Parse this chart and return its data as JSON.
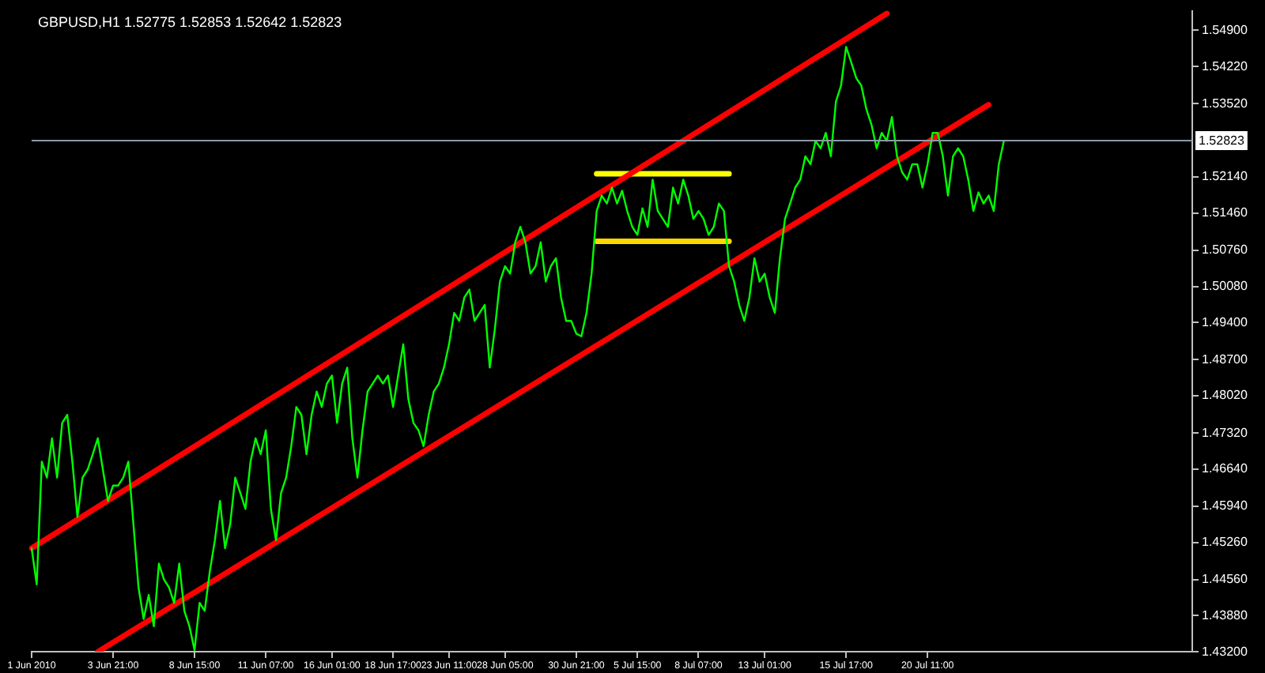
{
  "chart_data": {
    "type": "line",
    "title": "GBPUSD,H1 1.52775 1.52853 1.52642 1.52823",
    "categories": [
      "1 Jun 2010",
      null,
      null,
      null,
      null,
      null,
      null,
      null,
      null,
      null,
      null,
      null,
      null,
      null,
      null,
      null,
      "3 Jun 21:00",
      null,
      null,
      null,
      null,
      null,
      null,
      null,
      null,
      null,
      null,
      null,
      null,
      null,
      null,
      null,
      "8 Jun 15:00",
      null,
      null,
      null,
      null,
      null,
      null,
      null,
      null,
      null,
      null,
      null,
      null,
      null,
      "11 Jun 07:00",
      null,
      null,
      null,
      null,
      null,
      null,
      null,
      null,
      null,
      null,
      null,
      null,
      "16 Jun 01:00",
      null,
      null,
      null,
      null,
      null,
      null,
      null,
      null,
      null,
      null,
      null,
      "18 Jun 17:00",
      null,
      null,
      null,
      null,
      null,
      null,
      null,
      null,
      null,
      null,
      "23 Jun 11:00",
      null,
      null,
      null,
      null,
      null,
      null,
      null,
      null,
      null,
      null,
      "28 Jun 05:00",
      null,
      null,
      null,
      null,
      null,
      null,
      null,
      null,
      null,
      null,
      null,
      null,
      null,
      "30 Jun 21:00",
      null,
      null,
      null,
      null,
      null,
      null,
      null,
      null,
      null,
      null,
      null,
      "5 Jul 15:00",
      null,
      null,
      null,
      null,
      null,
      null,
      null,
      null,
      null,
      null,
      null,
      "8 Jul 07:00",
      null,
      null,
      null,
      null,
      null,
      null,
      null,
      null,
      null,
      null,
      null,
      null,
      "13 Jul 01:00",
      null,
      null,
      null,
      null,
      null,
      null,
      null,
      null,
      null,
      null,
      null,
      null,
      null,
      null,
      null,
      "15 Jul 17:00",
      null,
      null,
      null,
      null,
      null,
      null,
      null,
      null,
      null,
      null,
      null,
      null,
      null,
      null,
      null,
      "20 Jul 11:00",
      null,
      null,
      null,
      null,
      null,
      null,
      null,
      null,
      null,
      null,
      null,
      null,
      null,
      null,
      null,
      null,
      null,
      null,
      null,
      null,
      null,
      null,
      null,
      null,
      null,
      null,
      null,
      null,
      null,
      null,
      null,
      null,
      null,
      null,
      null,
      null,
      null,
      null,
      null,
      null,
      null,
      null,
      null,
      null,
      null,
      null,
      null,
      null,
      null,
      null,
      null,
      null
    ],
    "ylim": [
      1.432,
      1.5527
    ],
    "yticks": [
      {
        "value": 1.549,
        "label": "1.54900"
      },
      {
        "value": 1.5422,
        "label": "1.54220"
      },
      {
        "value": 1.5352,
        "label": "1.53520"
      },
      {
        "value": 1.5214,
        "label": "1.52140"
      },
      {
        "value": 1.5146,
        "label": "1.51460"
      },
      {
        "value": 1.5076,
        "label": "1.50760"
      },
      {
        "value": 1.5008,
        "label": "1.50080"
      },
      {
        "value": 1.494,
        "label": "1.49400"
      },
      {
        "value": 1.487,
        "label": "1.48700"
      },
      {
        "value": 1.4802,
        "label": "1.48020"
      },
      {
        "value": 1.4732,
        "label": "1.47320"
      },
      {
        "value": 1.4664,
        "label": "1.46640"
      },
      {
        "value": 1.4594,
        "label": "1.45940"
      },
      {
        "value": 1.4526,
        "label": "1.45260"
      },
      {
        "value": 1.4456,
        "label": "1.44560"
      },
      {
        "value": 1.4388,
        "label": "1.43880"
      },
      {
        "value": 1.432,
        "label": "1.43200"
      }
    ],
    "grid": false,
    "legend": false,
    "marker": "none",
    "line_style": "solid",
    "ref_lines": [
      {
        "axis": "y",
        "value": 1.52823,
        "label": "1.52823",
        "color": "#8c9aa8"
      }
    ],
    "series": [
      {
        "color": "#00ff00",
        "values": [
          1.4515,
          1.4447,
          1.4678,
          1.4648,
          1.4722,
          1.4648,
          1.4751,
          1.4766,
          1.4678,
          1.4574,
          1.4648,
          1.4663,
          1.4692,
          1.4722,
          1.4663,
          1.4604,
          1.4633,
          1.4633,
          1.4648,
          1.4678,
          1.456,
          1.4441,
          1.4382,
          1.4427,
          1.4368,
          1.4486,
          1.4456,
          1.4441,
          1.4412,
          1.4486,
          1.4397,
          1.4368,
          1.4323,
          1.4412,
          1.4397,
          1.4471,
          1.453,
          1.4604,
          1.4515,
          1.456,
          1.4648,
          1.4619,
          1.4589,
          1.4678,
          1.4722,
          1.4692,
          1.4737,
          1.4589,
          1.453,
          1.4619,
          1.4648,
          1.4707,
          1.4781,
          1.4766,
          1.4692,
          1.4766,
          1.481,
          1.4781,
          1.4825,
          1.484,
          1.4751,
          1.4825,
          1.4855,
          1.4722,
          1.4648,
          1.4737,
          1.481,
          1.4825,
          1.484,
          1.4825,
          1.484,
          1.4781,
          1.484,
          1.4899,
          1.4796,
          1.4751,
          1.4737,
          1.4707,
          1.4766,
          1.481,
          1.4825,
          1.4855,
          1.4899,
          1.4958,
          1.4943,
          1.4987,
          1.5002,
          1.4943,
          1.4958,
          1.4973,
          1.4855,
          1.4928,
          1.5017,
          1.5046,
          1.5032,
          1.5091,
          1.512,
          1.5091,
          1.5032,
          1.5046,
          1.5091,
          1.5017,
          1.5046,
          1.5061,
          1.4987,
          1.4943,
          1.4943,
          1.4919,
          1.4914,
          1.4958,
          1.5032,
          1.515,
          1.5179,
          1.5164,
          1.5194,
          1.5164,
          1.5188,
          1.515,
          1.512,
          1.5105,
          1.5155,
          1.512,
          1.5209,
          1.515,
          1.5135,
          1.512,
          1.5194,
          1.5164,
          1.5209,
          1.5179,
          1.5135,
          1.515,
          1.5135,
          1.5105,
          1.512,
          1.5164,
          1.515,
          1.5046,
          1.5017,
          1.4973,
          1.4943,
          1.4987,
          1.5061,
          1.5017,
          1.5032,
          1.4987,
          1.4958,
          1.5061,
          1.5135,
          1.5164,
          1.5194,
          1.5209,
          1.5253,
          1.5238,
          1.5282,
          1.5268,
          1.5297,
          1.5253,
          1.5356,
          1.5386,
          1.5459,
          1.543,
          1.54,
          1.5386,
          1.5341,
          1.5312,
          1.5268,
          1.5297,
          1.5282,
          1.5327,
          1.5253,
          1.5223,
          1.5209,
          1.5238,
          1.5238,
          1.5194,
          1.5238,
          1.5297,
          1.5297,
          1.5253,
          1.5179,
          1.5253,
          1.5268,
          1.5253,
          1.5209,
          1.515,
          1.5185,
          1.5164,
          1.5179,
          1.515,
          1.5238,
          1.5282,
          null,
          null,
          null,
          null,
          null,
          null,
          null,
          null,
          null,
          null,
          null,
          null,
          null,
          null,
          null,
          null,
          null,
          null,
          null,
          null,
          null,
          null,
          null,
          null,
          null,
          null,
          null,
          null,
          null,
          null,
          null,
          null,
          null,
          null,
          null,
          null,
          null
        ]
      },
      {
        "type": "line",
        "color": "#ff0000",
        "values": [
          1.4515,
          null,
          null,
          null,
          null,
          null,
          null,
          null,
          null,
          null,
          null,
          null,
          null,
          null,
          null,
          null,
          null,
          null,
          null,
          null,
          null,
          null,
          null,
          null,
          null,
          null,
          null,
          null,
          null,
          null,
          null,
          null,
          null,
          null,
          null,
          null,
          null,
          null,
          null,
          null,
          null,
          null,
          null,
          null,
          null,
          null,
          null,
          null,
          null,
          null,
          null,
          null,
          null,
          null,
          null,
          null,
          null,
          null,
          null,
          null,
          null,
          null,
          null,
          null,
          null,
          null,
          null,
          null,
          null,
          null,
          null,
          null,
          null,
          null,
          null,
          null,
          null,
          null,
          null,
          null,
          null,
          null,
          null,
          null,
          null,
          null,
          null,
          null,
          null,
          null,
          null,
          null,
          null,
          null,
          null,
          null,
          null,
          null,
          null,
          null,
          null,
          null,
          null,
          null,
          null,
          null,
          null,
          null,
          null,
          null,
          null,
          null,
          null,
          null,
          null,
          null,
          null,
          null,
          null,
          null,
          null,
          null,
          null,
          null,
          null,
          null,
          null,
          null,
          null,
          null,
          null,
          null,
          null,
          null,
          null,
          null,
          null,
          null,
          null,
          null,
          null,
          null,
          null,
          null,
          null,
          null,
          null,
          null,
          null,
          null,
          null,
          null,
          null,
          null,
          null,
          null,
          null,
          null,
          null,
          null,
          null,
          null,
          null,
          null,
          null,
          null,
          null,
          null,
          1.5522,
          null,
          null,
          null,
          null,
          null,
          null,
          null,
          null,
          null,
          null,
          null,
          null,
          null,
          null,
          null,
          null,
          null,
          null,
          null,
          null,
          null,
          null,
          null,
          null,
          null,
          null,
          null,
          null,
          null,
          null,
          null,
          null,
          null,
          null,
          null,
          null,
          null,
          null,
          null,
          null,
          null,
          null,
          null,
          null,
          null,
          null,
          null,
          null,
          null,
          null,
          null,
          null,
          null,
          null,
          null,
          null,
          null,
          null,
          null,
          null
        ]
      },
      {
        "type": "line",
        "color": "#ff0000",
        "values": [
          null,
          null,
          null,
          null,
          null,
          null,
          null,
          null,
          null,
          null,
          null,
          null,
          null,
          1.432,
          null,
          null,
          null,
          null,
          null,
          null,
          null,
          null,
          null,
          null,
          null,
          null,
          null,
          null,
          null,
          null,
          null,
          null,
          null,
          null,
          null,
          null,
          null,
          null,
          null,
          null,
          null,
          null,
          null,
          null,
          null,
          null,
          null,
          null,
          null,
          null,
          null,
          null,
          null,
          null,
          null,
          null,
          null,
          null,
          null,
          null,
          null,
          null,
          null,
          null,
          null,
          null,
          null,
          null,
          null,
          null,
          null,
          null,
          null,
          null,
          null,
          null,
          null,
          null,
          null,
          null,
          null,
          null,
          null,
          null,
          null,
          null,
          null,
          null,
          null,
          null,
          null,
          null,
          null,
          null,
          null,
          null,
          null,
          null,
          null,
          null,
          null,
          null,
          null,
          null,
          null,
          null,
          null,
          null,
          null,
          null,
          null,
          null,
          null,
          null,
          null,
          null,
          null,
          null,
          null,
          null,
          null,
          null,
          null,
          null,
          null,
          null,
          null,
          null,
          null,
          null,
          null,
          null,
          null,
          null,
          null,
          null,
          null,
          null,
          null,
          null,
          null,
          null,
          null,
          null,
          null,
          null,
          null,
          null,
          null,
          null,
          null,
          null,
          null,
          null,
          null,
          null,
          null,
          null,
          null,
          null,
          null,
          null,
          null,
          null,
          null,
          null,
          null,
          null,
          null,
          null,
          null,
          null,
          null,
          null,
          null,
          null,
          null,
          null,
          null,
          null,
          null,
          null,
          null,
          null,
          null,
          null,
          null,
          null,
          1.535,
          null,
          null,
          null,
          null,
          null,
          null,
          null,
          null,
          null,
          null,
          null,
          null,
          null,
          null,
          null,
          null,
          null,
          null,
          null,
          null,
          null,
          null,
          null,
          null,
          null,
          null,
          null,
          null,
          null,
          null,
          null,
          null,
          null,
          null,
          null,
          null,
          null,
          null,
          null,
          null
        ]
      },
      {
        "type": "line",
        "color": "#ffff00",
        "values": [
          null,
          null,
          null,
          null,
          null,
          null,
          null,
          null,
          null,
          null,
          null,
          null,
          null,
          null,
          null,
          null,
          null,
          null,
          null,
          null,
          null,
          null,
          null,
          null,
          null,
          null,
          null,
          null,
          null,
          null,
          null,
          null,
          null,
          null,
          null,
          null,
          null,
          null,
          null,
          null,
          null,
          null,
          null,
          null,
          null,
          null,
          null,
          null,
          null,
          null,
          null,
          null,
          null,
          null,
          null,
          null,
          null,
          null,
          null,
          null,
          null,
          null,
          null,
          null,
          null,
          null,
          null,
          null,
          null,
          null,
          null,
          null,
          null,
          null,
          null,
          null,
          null,
          null,
          null,
          null,
          null,
          null,
          null,
          null,
          null,
          null,
          null,
          null,
          null,
          null,
          null,
          null,
          null,
          null,
          null,
          null,
          null,
          null,
          null,
          null,
          null,
          null,
          null,
          null,
          null,
          null,
          null,
          null,
          null,
          null,
          null,
          1.522,
          null,
          null,
          null,
          null,
          null,
          null,
          null,
          null,
          null,
          null,
          null,
          null,
          null,
          null,
          null,
          null,
          null,
          null,
          null,
          null,
          null,
          null,
          null,
          null,
          null,
          1.522,
          null,
          null,
          null,
          null,
          null,
          null,
          null,
          null,
          null,
          null,
          null,
          null,
          null,
          null,
          null,
          null,
          null,
          null,
          null,
          null,
          null,
          null,
          null,
          null,
          null,
          null,
          null,
          null,
          null,
          null,
          null,
          null,
          null,
          null,
          null,
          null,
          null,
          null,
          null,
          null,
          null,
          null,
          null,
          null,
          null,
          null,
          null,
          null,
          null,
          null,
          null,
          null,
          null,
          null,
          null,
          null,
          null,
          null,
          null,
          null,
          null,
          null,
          null,
          null,
          null,
          null,
          null,
          null,
          null,
          null,
          null,
          null,
          null,
          null,
          null,
          null,
          null,
          null,
          null,
          null,
          null,
          null,
          null,
          null,
          null,
          null,
          null,
          null,
          null,
          null,
          null
        ]
      },
      {
        "type": "line",
        "color": "#ffd700",
        "values": [
          null,
          null,
          null,
          null,
          null,
          null,
          null,
          null,
          null,
          null,
          null,
          null,
          null,
          null,
          null,
          null,
          null,
          null,
          null,
          null,
          null,
          null,
          null,
          null,
          null,
          null,
          null,
          null,
          null,
          null,
          null,
          null,
          null,
          null,
          null,
          null,
          null,
          null,
          null,
          null,
          null,
          null,
          null,
          null,
          null,
          null,
          null,
          null,
          null,
          null,
          null,
          null,
          null,
          null,
          null,
          null,
          null,
          null,
          null,
          null,
          null,
          null,
          null,
          null,
          null,
          null,
          null,
          null,
          null,
          null,
          null,
          null,
          null,
          null,
          null,
          null,
          null,
          null,
          null,
          null,
          null,
          null,
          null,
          null,
          null,
          null,
          null,
          null,
          null,
          null,
          null,
          null,
          null,
          null,
          null,
          null,
          null,
          null,
          null,
          null,
          null,
          null,
          null,
          null,
          null,
          null,
          null,
          null,
          null,
          null,
          null,
          1.5093,
          null,
          null,
          null,
          null,
          null,
          null,
          null,
          null,
          null,
          null,
          null,
          null,
          null,
          null,
          null,
          null,
          null,
          null,
          null,
          null,
          null,
          null,
          null,
          null,
          null,
          1.5093,
          null,
          null,
          null,
          null,
          null,
          null,
          null,
          null,
          null,
          null,
          null,
          null,
          null,
          null,
          null,
          null,
          null,
          null,
          null,
          null,
          null,
          null,
          null,
          null,
          null,
          null,
          null,
          null,
          null,
          null,
          null,
          null,
          null,
          null,
          null,
          null,
          null,
          null,
          null,
          null,
          null,
          null,
          null,
          null,
          null,
          null,
          null,
          null,
          null,
          null,
          null,
          null,
          null,
          null,
          null,
          null,
          null,
          null,
          null,
          null,
          null,
          null,
          null,
          null,
          null,
          null,
          null,
          null,
          null,
          null,
          null,
          null,
          null,
          null,
          null,
          null,
          null,
          null,
          null,
          null,
          null,
          null,
          null,
          null,
          null,
          null,
          null,
          null,
          null,
          null,
          null
        ]
      }
    ]
  }
}
